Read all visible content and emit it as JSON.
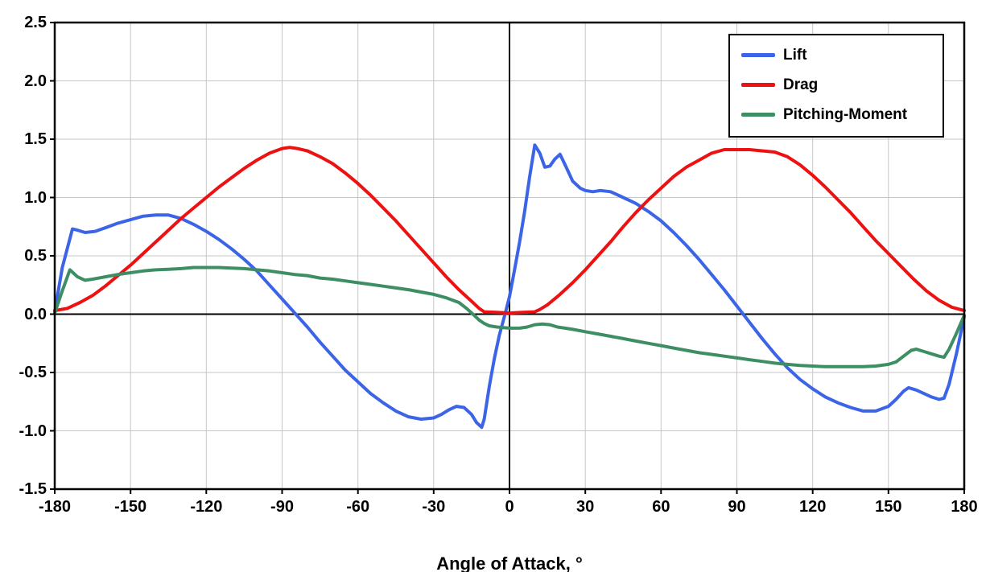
{
  "chart_data": {
    "type": "line",
    "title": "",
    "xlabel": "Angle of Attack, °",
    "ylabel": "",
    "xlim": [
      -180,
      180
    ],
    "ylim": [
      -1.5,
      2.5
    ],
    "xticks": [
      -180,
      -150,
      -120,
      -90,
      -60,
      -30,
      0,
      30,
      60,
      90,
      120,
      150,
      180
    ],
    "yticks": [
      -1.5,
      -1.0,
      -0.5,
      0.0,
      0.5,
      1.0,
      1.5,
      2.0,
      2.5
    ],
    "ytick_labels": [
      "-1.5",
      "-1.0",
      "-0.5",
      "0.0",
      "0.5",
      "1.0",
      "1.5",
      "2.0",
      "2.5"
    ],
    "grid": true,
    "grid_color": "#C6C6C6",
    "axis_color": "#000000",
    "background": "#FFFFFF",
    "legend_position": "top-right",
    "series": [
      {
        "name": "Lift",
        "color": "#3C64E6",
        "points": [
          [
            -180,
            0.02
          ],
          [
            -177,
            0.4
          ],
          [
            -173,
            0.73
          ],
          [
            -171,
            0.72
          ],
          [
            -168,
            0.7
          ],
          [
            -164,
            0.71
          ],
          [
            -160,
            0.74
          ],
          [
            -155,
            0.78
          ],
          [
            -150,
            0.81
          ],
          [
            -145,
            0.84
          ],
          [
            -140,
            0.85
          ],
          [
            -135,
            0.85
          ],
          [
            -130,
            0.82
          ],
          [
            -125,
            0.77
          ],
          [
            -120,
            0.71
          ],
          [
            -115,
            0.64
          ],
          [
            -110,
            0.56
          ],
          [
            -105,
            0.47
          ],
          [
            -100,
            0.37
          ],
          [
            -95,
            0.25
          ],
          [
            -90,
            0.13
          ],
          [
            -85,
            0.01
          ],
          [
            -80,
            -0.11
          ],
          [
            -75,
            -0.24
          ],
          [
            -70,
            -0.36
          ],
          [
            -65,
            -0.48
          ],
          [
            -60,
            -0.58
          ],
          [
            -55,
            -0.68
          ],
          [
            -50,
            -0.76
          ],
          [
            -45,
            -0.83
          ],
          [
            -40,
            -0.88
          ],
          [
            -35,
            -0.9
          ],
          [
            -30,
            -0.89
          ],
          [
            -27,
            -0.86
          ],
          [
            -24,
            -0.82
          ],
          [
            -21,
            -0.79
          ],
          [
            -18,
            -0.8
          ],
          [
            -15,
            -0.86
          ],
          [
            -13,
            -0.93
          ],
          [
            -11,
            -0.97
          ],
          [
            -10,
            -0.9
          ],
          [
            -8,
            -0.62
          ],
          [
            -6,
            -0.38
          ],
          [
            -4,
            -0.18
          ],
          [
            -2,
            -0.02
          ],
          [
            0,
            0.15
          ],
          [
            2,
            0.38
          ],
          [
            4,
            0.62
          ],
          [
            6,
            0.88
          ],
          [
            8,
            1.18
          ],
          [
            10,
            1.45
          ],
          [
            12,
            1.38
          ],
          [
            14,
            1.26
          ],
          [
            16,
            1.27
          ],
          [
            18,
            1.33
          ],
          [
            20,
            1.37
          ],
          [
            22,
            1.28
          ],
          [
            25,
            1.14
          ],
          [
            28,
            1.08
          ],
          [
            30,
            1.06
          ],
          [
            33,
            1.05
          ],
          [
            36,
            1.06
          ],
          [
            40,
            1.05
          ],
          [
            45,
            1.0
          ],
          [
            50,
            0.95
          ],
          [
            55,
            0.88
          ],
          [
            60,
            0.8
          ],
          [
            65,
            0.7
          ],
          [
            70,
            0.59
          ],
          [
            75,
            0.47
          ],
          [
            80,
            0.34
          ],
          [
            85,
            0.21
          ],
          [
            90,
            0.07
          ],
          [
            95,
            -0.07
          ],
          [
            100,
            -0.21
          ],
          [
            105,
            -0.34
          ],
          [
            110,
            -0.46
          ],
          [
            115,
            -0.56
          ],
          [
            120,
            -0.64
          ],
          [
            125,
            -0.71
          ],
          [
            130,
            -0.76
          ],
          [
            135,
            -0.8
          ],
          [
            140,
            -0.83
          ],
          [
            145,
            -0.83
          ],
          [
            150,
            -0.79
          ],
          [
            153,
            -0.73
          ],
          [
            156,
            -0.66
          ],
          [
            158,
            -0.63
          ],
          [
            161,
            -0.65
          ],
          [
            164,
            -0.68
          ],
          [
            167,
            -0.71
          ],
          [
            170,
            -0.73
          ],
          [
            172,
            -0.72
          ],
          [
            174,
            -0.6
          ],
          [
            177,
            -0.33
          ],
          [
            180,
            -0.02
          ]
        ]
      },
      {
        "name": "Drag",
        "color": "#EE1111",
        "points": [
          [
            -180,
            0.03
          ],
          [
            -175,
            0.05
          ],
          [
            -170,
            0.1
          ],
          [
            -165,
            0.16
          ],
          [
            -160,
            0.24
          ],
          [
            -155,
            0.33
          ],
          [
            -150,
            0.42
          ],
          [
            -145,
            0.52
          ],
          [
            -140,
            0.62
          ],
          [
            -135,
            0.72
          ],
          [
            -130,
            0.82
          ],
          [
            -125,
            0.91
          ],
          [
            -120,
            1.0
          ],
          [
            -115,
            1.09
          ],
          [
            -110,
            1.17
          ],
          [
            -105,
            1.25
          ],
          [
            -100,
            1.32
          ],
          [
            -95,
            1.38
          ],
          [
            -90,
            1.42
          ],
          [
            -87,
            1.43
          ],
          [
            -84,
            1.42
          ],
          [
            -80,
            1.4
          ],
          [
            -75,
            1.35
          ],
          [
            -70,
            1.29
          ],
          [
            -65,
            1.21
          ],
          [
            -60,
            1.12
          ],
          [
            -55,
            1.02
          ],
          [
            -50,
            0.91
          ],
          [
            -45,
            0.8
          ],
          [
            -40,
            0.68
          ],
          [
            -35,
            0.56
          ],
          [
            -30,
            0.44
          ],
          [
            -25,
            0.32
          ],
          [
            -20,
            0.21
          ],
          [
            -15,
            0.11
          ],
          [
            -12,
            0.05
          ],
          [
            -10,
            0.02
          ],
          [
            -5,
            0.015
          ],
          [
            0,
            0.01
          ],
          [
            5,
            0.015
          ],
          [
            10,
            0.02
          ],
          [
            12,
            0.04
          ],
          [
            15,
            0.08
          ],
          [
            20,
            0.17
          ],
          [
            25,
            0.27
          ],
          [
            30,
            0.38
          ],
          [
            35,
            0.5
          ],
          [
            40,
            0.62
          ],
          [
            45,
            0.75
          ],
          [
            50,
            0.87
          ],
          [
            55,
            0.98
          ],
          [
            60,
            1.08
          ],
          [
            65,
            1.18
          ],
          [
            70,
            1.26
          ],
          [
            75,
            1.32
          ],
          [
            80,
            1.38
          ],
          [
            85,
            1.41
          ],
          [
            90,
            1.41
          ],
          [
            95,
            1.41
          ],
          [
            100,
            1.4
          ],
          [
            105,
            1.39
          ],
          [
            110,
            1.35
          ],
          [
            115,
            1.28
          ],
          [
            120,
            1.19
          ],
          [
            125,
            1.09
          ],
          [
            130,
            0.98
          ],
          [
            135,
            0.87
          ],
          [
            140,
            0.75
          ],
          [
            145,
            0.63
          ],
          [
            150,
            0.52
          ],
          [
            155,
            0.41
          ],
          [
            160,
            0.3
          ],
          [
            165,
            0.2
          ],
          [
            170,
            0.12
          ],
          [
            175,
            0.06
          ],
          [
            180,
            0.03
          ]
        ]
      },
      {
        "name": "Pitching-Moment",
        "color": "#3E8E63",
        "points": [
          [
            -180,
            0.01
          ],
          [
            -177,
            0.2
          ],
          [
            -174,
            0.38
          ],
          [
            -171,
            0.32
          ],
          [
            -168,
            0.29
          ],
          [
            -165,
            0.3
          ],
          [
            -160,
            0.32
          ],
          [
            -155,
            0.34
          ],
          [
            -150,
            0.355
          ],
          [
            -145,
            0.37
          ],
          [
            -140,
            0.38
          ],
          [
            -135,
            0.385
          ],
          [
            -130,
            0.39
          ],
          [
            -125,
            0.4
          ],
          [
            -120,
            0.4
          ],
          [
            -115,
            0.4
          ],
          [
            -110,
            0.395
          ],
          [
            -105,
            0.39
          ],
          [
            -100,
            0.38
          ],
          [
            -95,
            0.37
          ],
          [
            -90,
            0.355
          ],
          [
            -85,
            0.34
          ],
          [
            -80,
            0.33
          ],
          [
            -75,
            0.31
          ],
          [
            -70,
            0.3
          ],
          [
            -65,
            0.285
          ],
          [
            -60,
            0.27
          ],
          [
            -55,
            0.255
          ],
          [
            -50,
            0.24
          ],
          [
            -45,
            0.225
          ],
          [
            -40,
            0.21
          ],
          [
            -35,
            0.19
          ],
          [
            -30,
            0.17
          ],
          [
            -25,
            0.14
          ],
          [
            -20,
            0.1
          ],
          [
            -17,
            0.05
          ],
          [
            -14,
            -0.01
          ],
          [
            -12,
            -0.05
          ],
          [
            -10,
            -0.08
          ],
          [
            -8,
            -0.1
          ],
          [
            -5,
            -0.11
          ],
          [
            0,
            -0.12
          ],
          [
            4,
            -0.12
          ],
          [
            7,
            -0.11
          ],
          [
            10,
            -0.09
          ],
          [
            13,
            -0.085
          ],
          [
            16,
            -0.09
          ],
          [
            19,
            -0.11
          ],
          [
            22,
            -0.12
          ],
          [
            25,
            -0.13
          ],
          [
            30,
            -0.15
          ],
          [
            35,
            -0.17
          ],
          [
            40,
            -0.19
          ],
          [
            45,
            -0.21
          ],
          [
            50,
            -0.23
          ],
          [
            55,
            -0.25
          ],
          [
            60,
            -0.27
          ],
          [
            65,
            -0.29
          ],
          [
            70,
            -0.31
          ],
          [
            75,
            -0.33
          ],
          [
            80,
            -0.345
          ],
          [
            85,
            -0.36
          ],
          [
            90,
            -0.375
          ],
          [
            95,
            -0.39
          ],
          [
            100,
            -0.405
          ],
          [
            105,
            -0.42
          ],
          [
            110,
            -0.43
          ],
          [
            115,
            -0.44
          ],
          [
            120,
            -0.445
          ],
          [
            125,
            -0.45
          ],
          [
            130,
            -0.45
          ],
          [
            135,
            -0.45
          ],
          [
            140,
            -0.45
          ],
          [
            145,
            -0.445
          ],
          [
            150,
            -0.43
          ],
          [
            153,
            -0.41
          ],
          [
            156,
            -0.36
          ],
          [
            159,
            -0.31
          ],
          [
            161,
            -0.3
          ],
          [
            164,
            -0.32
          ],
          [
            167,
            -0.34
          ],
          [
            170,
            -0.36
          ],
          [
            172,
            -0.37
          ],
          [
            174,
            -0.3
          ],
          [
            177,
            -0.16
          ],
          [
            180,
            -0.01
          ]
        ]
      }
    ]
  }
}
